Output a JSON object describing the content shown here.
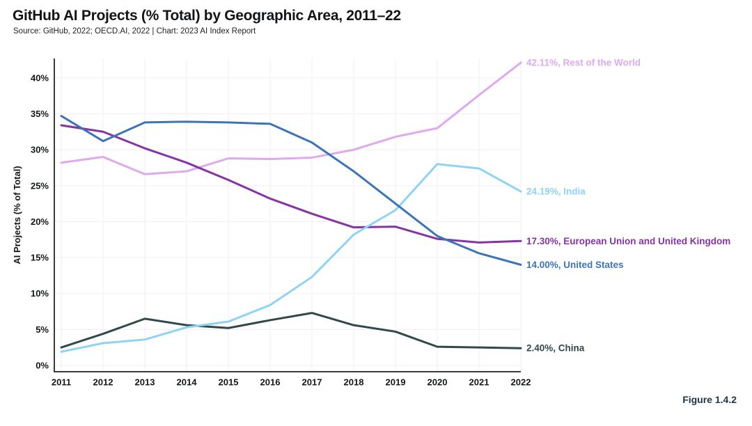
{
  "header": {
    "title": "GitHub AI Projects (% Total) by Geographic Area, 2011–22",
    "subtitle": "Source: GitHub, 2022; OECD.AI, 2022 | Chart: 2023 AI Index Report"
  },
  "figure_label": "Figure 1.4.2",
  "colors": {
    "background": "#ffffff",
    "grid": "#f5eff5",
    "axis": "#3b3b3b",
    "tick_text": "#131619",
    "figure_label": "#1d3349"
  },
  "chart_data": {
    "type": "line",
    "x": [
      2011,
      2012,
      2013,
      2014,
      2015,
      2016,
      2017,
      2018,
      2019,
      2020,
      2021,
      2022
    ],
    "xlabel": "",
    "ylabel": "AI Projects (% of Total)",
    "ylim": [
      0,
      42.5
    ],
    "yticks": [
      0,
      5,
      10,
      15,
      20,
      25,
      30,
      35,
      40
    ],
    "ytick_suffix": "%",
    "grid": true,
    "legend_position": "right-end-labels",
    "series": [
      {
        "name": "Rest of the World",
        "color": "#dfa9ef",
        "end_label": "42.11%, Rest of the World",
        "values": [
          28.2,
          29.0,
          26.6,
          27.0,
          28.8,
          28.7,
          28.9,
          30.0,
          31.8,
          33.0,
          37.6,
          42.11
        ]
      },
      {
        "name": "China",
        "color": "#2f484c",
        "end_label": "2.40%, China",
        "values": [
          2.5,
          4.4,
          6.5,
          5.6,
          5.2,
          6.3,
          7.3,
          5.6,
          4.7,
          2.6,
          2.5,
          2.4
        ]
      },
      {
        "name": "European Union and United Kingdom",
        "color": "#8633a4",
        "end_label": "17.30%, European Union and United Kingdom",
        "values": [
          33.4,
          32.5,
          30.2,
          28.2,
          25.8,
          23.2,
          21.1,
          19.2,
          19.3,
          17.6,
          17.1,
          17.3
        ]
      },
      {
        "name": "India",
        "color": "#8dd3f6",
        "end_label": "24.19%, India",
        "values": [
          1.9,
          3.1,
          3.6,
          5.3,
          6.1,
          8.4,
          12.3,
          18.2,
          21.6,
          28.0,
          27.4,
          24.19
        ]
      },
      {
        "name": "United States",
        "color": "#3b74b7",
        "end_label": "14.00%, United States",
        "values": [
          34.7,
          31.2,
          33.8,
          33.9,
          33.8,
          33.6,
          31.0,
          27.0,
          22.5,
          18.0,
          15.6,
          14.0
        ]
      }
    ]
  }
}
